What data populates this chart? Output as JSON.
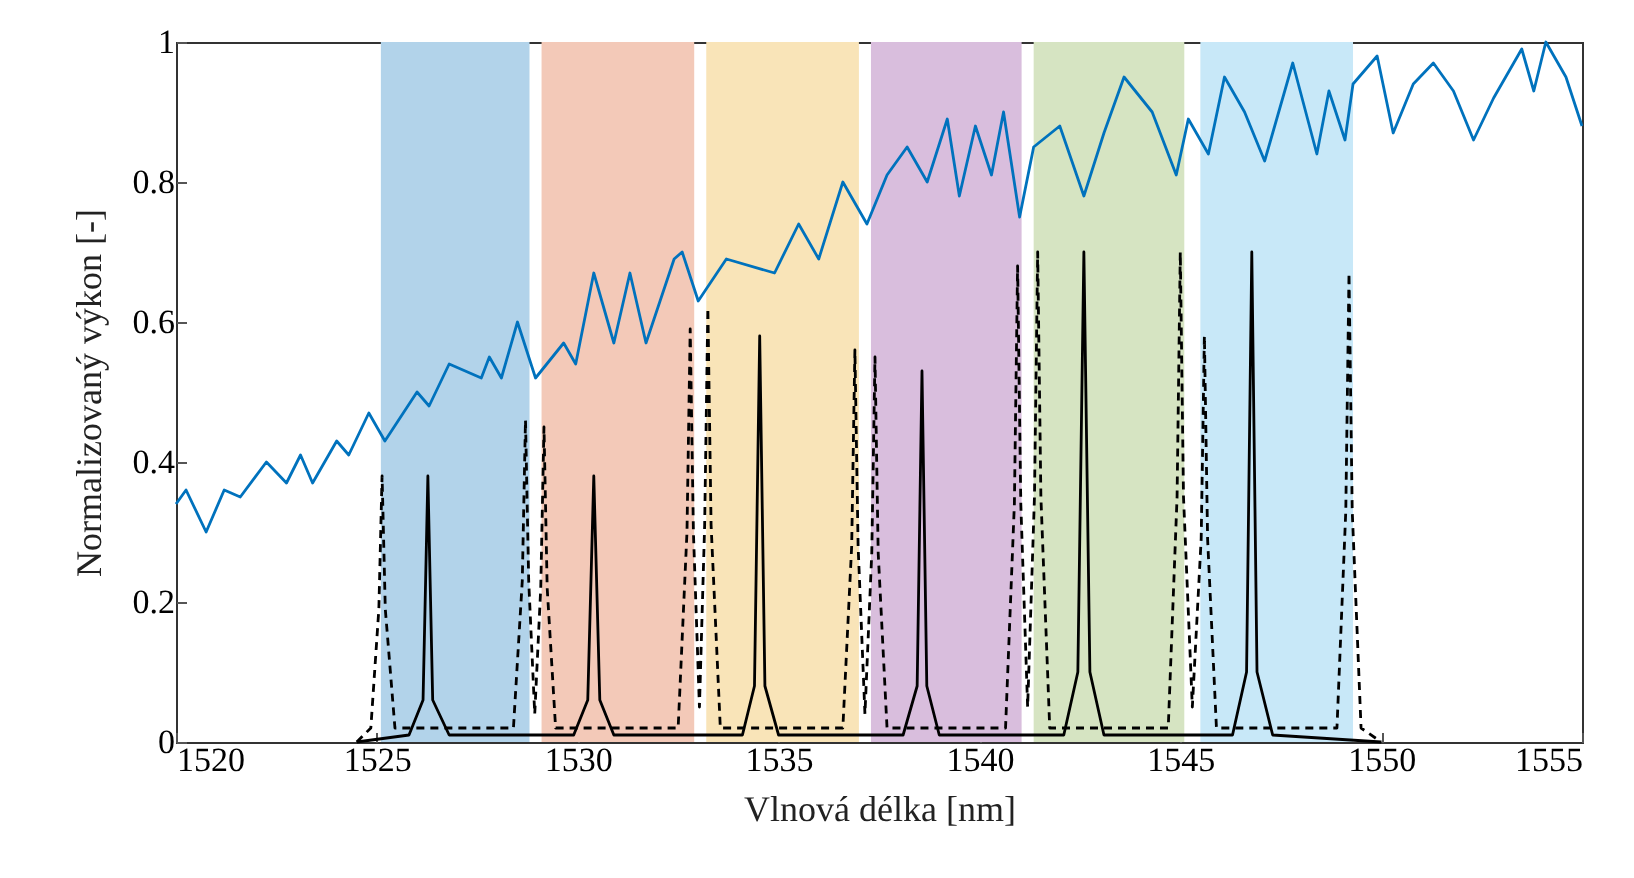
{
  "chart_data": {
    "type": "line",
    "xlabel": "Vlnová délka [nm]",
    "ylabel": "Normalizovaný výkon [-]",
    "xlim": [
      1520,
      1555
    ],
    "xticks": [
      1520,
      1525,
      1530,
      1535,
      1540,
      1545,
      1550,
      1555
    ],
    "ylim": [
      0,
      1
    ],
    "yticks": [
      0,
      0.2,
      0.4,
      0.6,
      0.8,
      1
    ],
    "grid": false,
    "bands": [
      {
        "axis": "x",
        "from": 1525.1,
        "to": 1528.8,
        "color": "#b2d3ea"
      },
      {
        "axis": "x",
        "from": 1529.1,
        "to": 1532.9,
        "color": "#f3c9b8"
      },
      {
        "axis": "x",
        "from": 1533.2,
        "to": 1537.0,
        "color": "#f9e4b8"
      },
      {
        "axis": "x",
        "from": 1537.3,
        "to": 1541.05,
        "color": "#d9bedd"
      },
      {
        "axis": "x",
        "from": 1541.35,
        "to": 1545.1,
        "color": "#d6e4c2"
      },
      {
        "axis": "x",
        "from": 1545.5,
        "to": 1549.3,
        "color": "#c8e8f8"
      }
    ],
    "series": [
      {
        "color": "#0072bd",
        "line_style": "solid",
        "x": [
          1520,
          1520.25,
          1520.75,
          1521.2,
          1521.6,
          1522.25,
          1522.75,
          1523.1,
          1523.4,
          1524,
          1524.3,
          1524.8,
          1525.2,
          1526,
          1526.3,
          1526.8,
          1527.6,
          1527.8,
          1528.1,
          1528.5,
          1528.95,
          1529.65,
          1529.95,
          1530.4,
          1530.9,
          1531.3,
          1531.7,
          1532.05,
          1532.4,
          1532.6,
          1533,
          1533.7,
          1534.9,
          1535.5,
          1536,
          1536.6,
          1537.2,
          1537.7,
          1538.2,
          1538.7,
          1539.2,
          1539.5,
          1539.9,
          1540.3,
          1540.6,
          1541,
          1541.35,
          1542,
          1542.6,
          1543.1,
          1543.6,
          1544.3,
          1544.9,
          1545.2,
          1545.7,
          1546.1,
          1546.6,
          1547.1,
          1547.8,
          1548.4,
          1548.7,
          1549.1,
          1549.3,
          1549.9,
          1550.3,
          1550.8,
          1551.3,
          1551.8,
          1552.3,
          1552.8,
          1553.5,
          1553.8,
          1554.1,
          1554.6,
          1555
        ],
        "values": [
          0.34,
          0.36,
          0.3,
          0.36,
          0.35,
          0.4,
          0.37,
          0.41,
          0.37,
          0.43,
          0.41,
          0.47,
          0.43,
          0.5,
          0.48,
          0.54,
          0.52,
          0.55,
          0.52,
          0.6,
          0.52,
          0.57,
          0.54,
          0.67,
          0.57,
          0.67,
          0.57,
          0.63,
          0.69,
          0.7,
          0.63,
          0.69,
          0.67,
          0.74,
          0.69,
          0.8,
          0.74,
          0.81,
          0.85,
          0.8,
          0.89,
          0.78,
          0.88,
          0.81,
          0.9,
          0.75,
          0.85,
          0.88,
          0.78,
          0.87,
          0.95,
          0.9,
          0.81,
          0.89,
          0.84,
          0.95,
          0.9,
          0.83,
          0.97,
          0.84,
          0.93,
          0.86,
          0.94,
          0.98,
          0.87,
          0.94,
          0.97,
          0.93,
          0.86,
          0.92,
          0.99,
          0.93,
          1.0,
          0.95,
          0.88
        ]
      },
      {
        "color": "#000000",
        "line_style": "solid",
        "x": [
          1524.5,
          1525.8,
          1526.15,
          1526.27,
          1526.39,
          1526.8,
          1529.9,
          1530.25,
          1530.4,
          1530.55,
          1530.9,
          1534.1,
          1534.4,
          1534.53,
          1534.66,
          1535,
          1538.1,
          1538.45,
          1538.57,
          1538.69,
          1539,
          1542.1,
          1542.45,
          1542.6,
          1542.75,
          1543.1,
          1546.3,
          1546.65,
          1546.78,
          1546.91,
          1547.3,
          1550
        ],
        "values": [
          0,
          0.01,
          0.06,
          0.38,
          0.06,
          0.01,
          0.01,
          0.06,
          0.38,
          0.06,
          0.01,
          0.01,
          0.08,
          0.58,
          0.08,
          0.01,
          0.01,
          0.08,
          0.53,
          0.08,
          0.01,
          0.01,
          0.1,
          0.7,
          0.1,
          0.01,
          0.01,
          0.1,
          0.7,
          0.1,
          0.01,
          0
        ]
      },
      {
        "color": "#000000",
        "line_style": "dashed",
        "x": [
          1524.5,
          1524.85,
          1525.05,
          1525.13,
          1525.21,
          1525.45,
          1528.4,
          1528.62,
          1528.7,
          1528.78,
          1528.93,
          1529.08,
          1529.16,
          1529.24,
          1529.45,
          1532.5,
          1532.72,
          1532.8,
          1532.88,
          1533.03,
          1533.16,
          1533.24,
          1533.32,
          1533.55,
          1536.6,
          1536.82,
          1536.9,
          1536.98,
          1537.15,
          1537.32,
          1537.4,
          1537.48,
          1537.7,
          1540.65,
          1540.87,
          1540.95,
          1541.03,
          1541.2,
          1541.37,
          1541.45,
          1541.53,
          1541.75,
          1544.7,
          1544.92,
          1545,
          1545.08,
          1545.3,
          1545.52,
          1545.6,
          1545.68,
          1545.9,
          1548.9,
          1549.12,
          1549.2,
          1549.28,
          1549.5,
          1550
        ],
        "values": [
          0,
          0.02,
          0.19,
          0.38,
          0.19,
          0.02,
          0.02,
          0.23,
          0.46,
          0.23,
          0.04,
          0.22,
          0.45,
          0.22,
          0.02,
          0.02,
          0.3,
          0.59,
          0.3,
          0.05,
          0.31,
          0.62,
          0.31,
          0.02,
          0.02,
          0.28,
          0.56,
          0.28,
          0.04,
          0.27,
          0.55,
          0.27,
          0.02,
          0.02,
          0.34,
          0.68,
          0.34,
          0.05,
          0.35,
          0.7,
          0.35,
          0.02,
          0.02,
          0.35,
          0.7,
          0.35,
          0.05,
          0.29,
          0.58,
          0.29,
          0.02,
          0.02,
          0.33,
          0.67,
          0.33,
          0.02,
          0
        ]
      }
    ]
  }
}
